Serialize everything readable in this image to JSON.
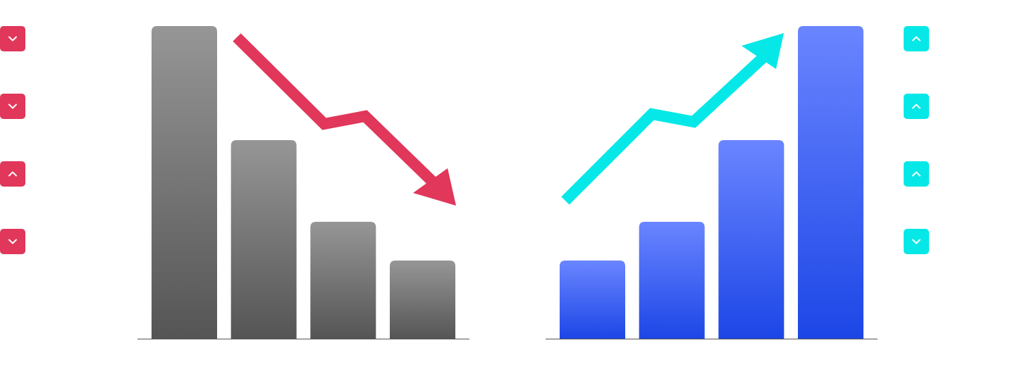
{
  "chart_data": [
    {
      "type": "bar",
      "trend": "down",
      "categories": [
        "",
        "",
        "",
        ""
      ],
      "values": [
        100,
        63.5,
        37.4,
        25
      ],
      "ylim": [
        0,
        100
      ],
      "grid": false,
      "bar_color_top": "#969696",
      "bar_color_bottom": "#555555",
      "arrow_color": "#E0375A"
    },
    {
      "type": "bar",
      "trend": "up",
      "categories": [
        "",
        "",
        "",
        ""
      ],
      "values": [
        25,
        37.4,
        63.5,
        100
      ],
      "ylim": [
        0,
        100
      ],
      "grid": false,
      "bar_color_top": "#6A85FF",
      "bar_color_bottom": "#1C46E6",
      "arrow_color": "#06E8E8"
    }
  ],
  "side_buttons": {
    "left": {
      "color": "#E0375A",
      "icons": [
        "chevron-down-icon",
        "chevron-down-icon",
        "chevron-up-icon",
        "chevron-down-icon"
      ]
    },
    "right": {
      "color": "#06E8E8",
      "icons": [
        "chevron-up-icon",
        "chevron-up-icon",
        "chevron-up-icon",
        "chevron-down-icon"
      ]
    }
  }
}
